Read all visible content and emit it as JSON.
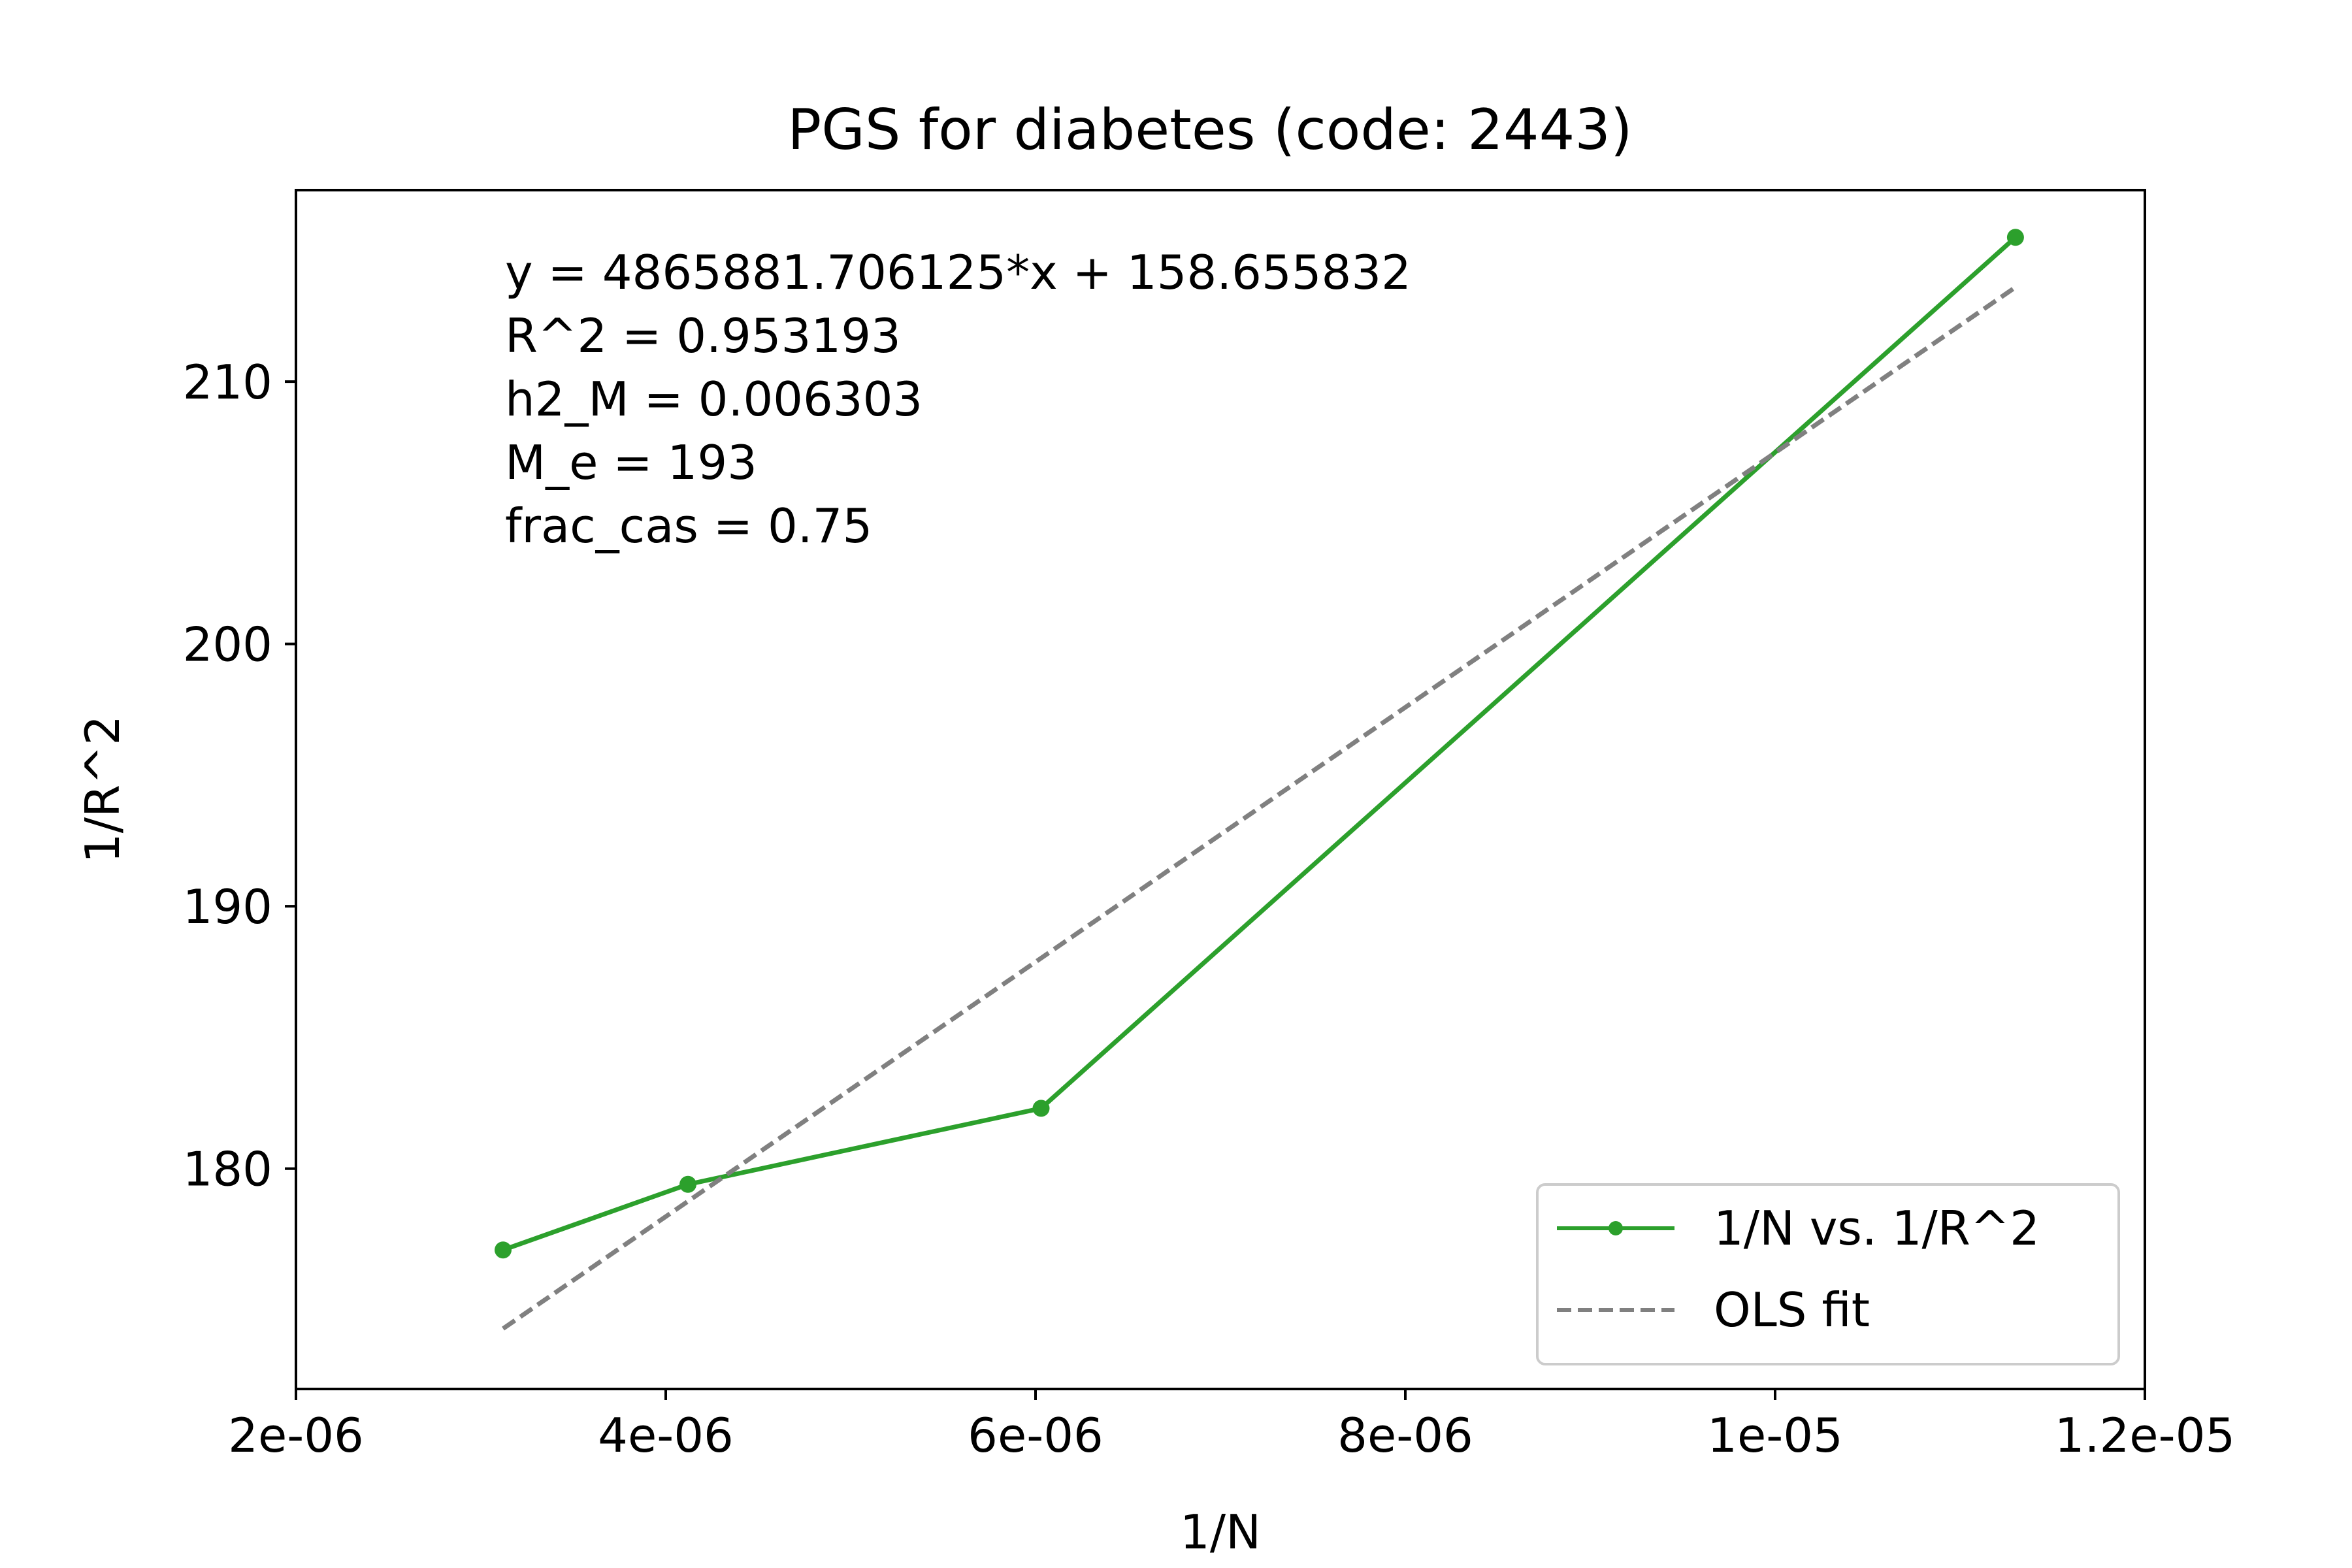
{
  "chart_data": {
    "type": "line",
    "title": "PGS for diabetes (code: 2443)",
    "xlabel": "1/N",
    "ylabel": "1/R^2",
    "xlim": [
      2e-06,
      1.2e-05
    ],
    "ylim": [
      171.6,
      217.3
    ],
    "xticks": [
      {
        "value": 2e-06,
        "label": "2e-06"
      },
      {
        "value": 4e-06,
        "label": "4e-06"
      },
      {
        "value": 6e-06,
        "label": "6e-06"
      },
      {
        "value": 8e-06,
        "label": "8e-06"
      },
      {
        "value": 1e-05,
        "label": "1e-05"
      },
      {
        "value": 1.2e-05,
        "label": "1.2e-05"
      }
    ],
    "yticks": [
      {
        "value": 180,
        "label": "180"
      },
      {
        "value": 190,
        "label": "190"
      },
      {
        "value": 200,
        "label": "200"
      },
      {
        "value": 210,
        "label": "210"
      }
    ],
    "grid": false,
    "legend_position": "lower-right",
    "series": [
      {
        "name": "1/N vs. 1/R^2",
        "style": "solid-with-markers",
        "color": "#2ca02c",
        "points": [
          {
            "x": 3.12e-06,
            "y": 176.9
          },
          {
            "x": 4.12e-06,
            "y": 179.4
          },
          {
            "x": 6.03e-06,
            "y": 182.3
          },
          {
            "x": 1.13e-05,
            "y": 215.5
          }
        ]
      },
      {
        "name": "OLS fit",
        "style": "dashed",
        "color": "#808080",
        "points": [
          {
            "x": 3.12e-06,
            "y": 173.9
          },
          {
            "x": 1.13e-05,
            "y": 213.6
          }
        ]
      }
    ],
    "annotations": [
      "y = 4865881.706125*x + 158.655832",
      "R^2 = 0.953193",
      "h2_M = 0.006303",
      "M_e = 193",
      "frac_cas = 0.75"
    ]
  }
}
